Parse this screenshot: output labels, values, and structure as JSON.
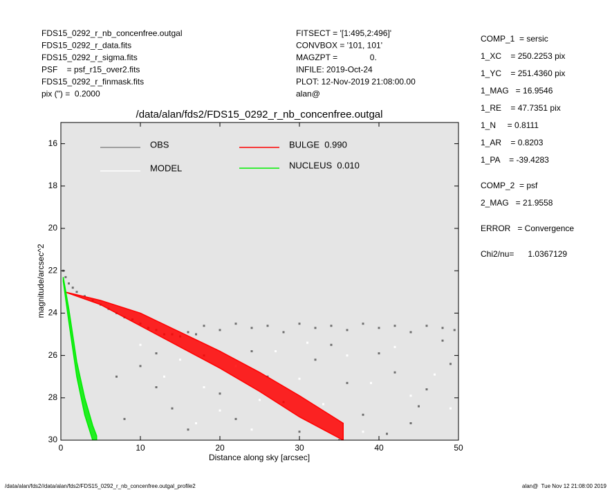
{
  "chart_data": {
    "type": "scatter",
    "title": "/data/alan/fds2/FDS15_0292_r_nb_concenfree.outgal",
    "xlabel": "Distance along sky [arcsec]",
    "ylabel": "magnitude/arcsec^2",
    "xlim": [
      0,
      50
    ],
    "ylim": [
      30,
      15
    ],
    "xticks": [
      0,
      10,
      20,
      30,
      40,
      50
    ],
    "yticks": [
      16,
      18,
      20,
      22,
      24,
      26,
      28,
      30
    ],
    "background": "#e5e5e5",
    "series": [
      {
        "name": "OBS",
        "color": "#6e6e6e",
        "style": "points",
        "x": [
          0.3,
          0.6,
          1,
          1.5,
          2,
          3,
          4,
          5,
          6,
          7,
          8,
          9,
          10,
          11,
          12,
          13,
          14,
          15,
          16,
          17,
          18,
          20,
          22,
          24,
          26,
          28,
          30,
          32,
          34,
          36,
          38,
          40,
          42,
          44,
          46,
          48,
          49.5,
          10,
          12,
          14,
          16,
          18,
          20,
          22,
          24,
          26,
          28,
          30,
          32,
          34,
          36,
          38,
          40,
          42,
          44,
          46,
          48,
          49,
          8,
          7,
          12,
          45,
          41,
          35
        ],
        "values": [
          22.0,
          22.3,
          22.6,
          22.8,
          23.0,
          23.2,
          23.4,
          23.6,
          23.8,
          24.0,
          24.2,
          24.3,
          24.5,
          24.7,
          24.8,
          25.0,
          25.0,
          25.1,
          24.9,
          25.0,
          24.6,
          24.8,
          24.5,
          24.7,
          24.6,
          24.9,
          24.5,
          24.7,
          24.6,
          24.8,
          24.5,
          24.7,
          24.6,
          24.9,
          24.6,
          24.7,
          24.8,
          26.5,
          27.5,
          28.5,
          29.5,
          26.0,
          27.8,
          29.0,
          25.8,
          27.0,
          28.2,
          29.6,
          26.2,
          25.5,
          27.3,
          28.8,
          25.9,
          26.8,
          29.2,
          27.6,
          25.3,
          26.4,
          29.0,
          27.0,
          25.9,
          28.4,
          29.7,
          30.0
        ]
      },
      {
        "name": "MODEL",
        "color": "#ffffff",
        "style": "points",
        "x": [
          10,
          15,
          18,
          20,
          22,
          25,
          27,
          30,
          33,
          36,
          39,
          42,
          44,
          47,
          49,
          13,
          17,
          24,
          31,
          38
        ],
        "values": [
          25.5,
          26.2,
          27.5,
          28.6,
          26.5,
          28.1,
          25.8,
          27.1,
          28.3,
          26.0,
          27.3,
          25.6,
          27.9,
          26.9,
          28.5,
          27.0,
          29.2,
          29.5,
          25.4,
          29.6
        ]
      },
      {
        "name": "BULGE  0.990",
        "color": "#ff0000",
        "style": "band",
        "x": [
          0.5,
          5,
          10,
          15,
          20,
          25,
          30,
          35.5
        ],
        "low": [
          23.0,
          23.4,
          24.0,
          24.9,
          25.8,
          26.8,
          27.9,
          29.2
        ],
        "high": [
          23.0,
          23.6,
          24.6,
          25.6,
          26.6,
          27.7,
          28.9,
          30.0
        ]
      },
      {
        "name": "NUCLEUS  0.010",
        "color": "#00ee00",
        "style": "band",
        "x": [
          0.3,
          1,
          2,
          3,
          4,
          4.5
        ],
        "low": [
          22.3,
          23.8,
          26.3,
          28.0,
          29.3,
          29.8
        ],
        "high": [
          22.5,
          24.4,
          27.0,
          28.8,
          30.0,
          30.0
        ]
      }
    ]
  },
  "header": {
    "left": [
      "FDS15_0292_r_nb_concenfree.outgal",
      "FDS15_0292_r_data.fits",
      "FDS15_0292_r_sigma.fits",
      "PSF    = psf_r15_over2.fits",
      "FDS15_0292_r_finmask.fits",
      "pix (\") =  0.2000"
    ],
    "middle": [
      "FITSECT = '[1:495,2:496]'",
      "CONVBOX = '101, 101'",
      "MAGZPT =              0.",
      "INFILE: 2019-Oct-24",
      "PLOT: 12-Nov-2019 21:08:00.00",
      "alan@"
    ],
    "right": [
      "COMP_1  = sersic",
      "1_XC    = 250.2253 pix",
      "1_YC    = 251.4360 pix",
      "1_MAG   = 16.9546",
      "1_RE    = 47.7351 pix",
      "1_N     = 0.8111",
      "1_AR    = 0.8203",
      "1_PA    = -39.4283",
      "COMP_2  = psf",
      "2_MAG   = 21.9558",
      "ERROR   = Convergence",
      "Chi2/nu=      1.0367129"
    ]
  },
  "footer": {
    "left": "/data/alan/fds2//data/alan/fds2/FDS15_0292_r_nb_concenfree.outgal_profile2",
    "right": "alan@  Tue Nov 12 21:08:00 2019"
  }
}
